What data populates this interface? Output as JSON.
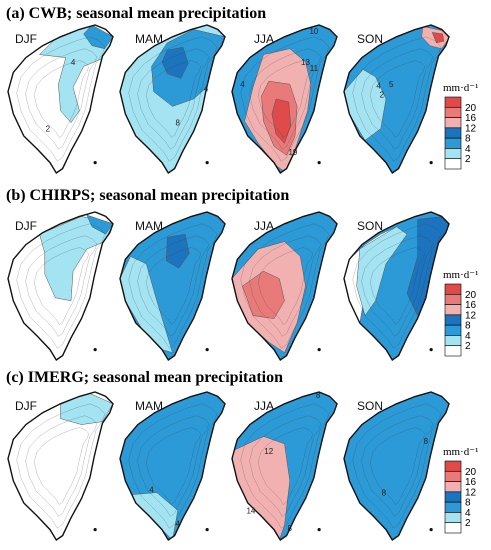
{
  "chart_data": {
    "type": "contour-map-grid",
    "rows": [
      {
        "title": "(a) CWB; seasonal mean precipitation",
        "panels": [
          {
            "season": "DJF",
            "base_color": "#ffffff",
            "zones": [
              {
                "color": "#a3e3f2",
                "level": 4
              },
              {
                "color": "#2c9ad6",
                "level": 8
              }
            ],
            "labels": [
              {
                "text": "4",
                "u": 0.62,
                "v": 0.27
              },
              {
                "text": "2",
                "u": 0.38,
                "v": 0.72
              }
            ]
          },
          {
            "season": "MAM",
            "base_color": "#a3e3f2",
            "zones": [
              {
                "color": "#2c9ad6",
                "level": 8
              },
              {
                "color": "#1c74bf",
                "level": 10
              }
            ],
            "labels": [
              {
                "text": "4",
                "u": 0.82,
                "v": 0.45
              },
              {
                "text": "8",
                "u": 0.55,
                "v": 0.68
              }
            ]
          },
          {
            "season": "JJA",
            "base_color": "#2c9ad6",
            "zones": [
              {
                "color": "#f2b1b1",
                "level": 12
              },
              {
                "color": "#e87a7a",
                "level": 16
              },
              {
                "color": "#df4a4a",
                "level": 20
              }
            ],
            "labels": [
              {
                "text": "10",
                "u": 0.78,
                "v": 0.06
              },
              {
                "text": "13",
                "u": 0.7,
                "v": 0.27
              },
              {
                "text": "11",
                "u": 0.78,
                "v": 0.31
              },
              {
                "text": "4",
                "u": 0.1,
                "v": 0.42
              },
              {
                "text": "19",
                "u": 0.58,
                "v": 0.88
              }
            ]
          },
          {
            "season": "SON",
            "base_color": "#2c9ad6",
            "zones": [
              {
                "color": "#a3e3f2",
                "level": 4
              },
              {
                "color": "#f2b1b1",
                "level": 12
              },
              {
                "color": "#df4a4a",
                "level": 20
              }
            ],
            "labels": [
              {
                "text": "4",
                "u": 0.33,
                "v": 0.43
              },
              {
                "text": "5",
                "u": 0.45,
                "v": 0.42
              },
              {
                "text": "2",
                "u": 0.36,
                "v": 0.49
              }
            ]
          }
        ]
      },
      {
        "title": "(b) CHIRPS; seasonal mean precipitation",
        "panels": [
          {
            "season": "DJF",
            "base_color": "#ffffff",
            "zones": [
              {
                "color": "#a3e3f2",
                "level": 4
              },
              {
                "color": "#2c9ad6",
                "level": 8
              }
            ],
            "labels": []
          },
          {
            "season": "MAM",
            "base_color": "#2c9ad6",
            "zones": [
              {
                "color": "#a3e3f2",
                "level": 4
              },
              {
                "color": "#1c74bf",
                "level": 10
              }
            ],
            "labels": []
          },
          {
            "season": "JJA",
            "base_color": "#2c9ad6",
            "zones": [
              {
                "color": "#f2b1b1",
                "level": 12
              },
              {
                "color": "#e87a7a",
                "level": 16
              }
            ],
            "labels": []
          },
          {
            "season": "SON",
            "base_color": "#2c9ad6",
            "zones": [
              {
                "color": "#ffffff",
                "level": 2
              },
              {
                "color": "#a3e3f2",
                "level": 4
              },
              {
                "color": "#1c74bf",
                "level": 10
              }
            ],
            "labels": []
          }
        ]
      },
      {
        "title": "(c) IMERG; seasonal mean precipitation",
        "panels": [
          {
            "season": "DJF",
            "base_color": "#ffffff",
            "zones": [
              {
                "color": "#a3e3f2",
                "level": 4
              }
            ],
            "labels": []
          },
          {
            "season": "MAM",
            "base_color": "#2c9ad6",
            "zones": [
              {
                "color": "#a3e3f2",
                "level": 4
              }
            ],
            "labels": [
              {
                "text": "4",
                "u": 0.3,
                "v": 0.68
              },
              {
                "text": "4",
                "u": 0.55,
                "v": 0.91
              }
            ]
          },
          {
            "season": "JJA",
            "base_color": "#2c9ad6",
            "zones": [
              {
                "color": "#f2b1b1",
                "level": 12
              }
            ],
            "labels": [
              {
                "text": "8",
                "u": 0.82,
                "v": 0.04
              },
              {
                "text": "12",
                "u": 0.35,
                "v": 0.42
              },
              {
                "text": "14",
                "u": 0.18,
                "v": 0.82
              },
              {
                "text": "8",
                "u": 0.55,
                "v": 0.94
              }
            ]
          },
          {
            "season": "SON",
            "base_color": "#2c9ad6",
            "zones": [],
            "labels": [
              {
                "text": "8",
                "u": 0.78,
                "v": 0.35
              },
              {
                "text": "8",
                "u": 0.38,
                "v": 0.7
              }
            ]
          }
        ]
      }
    ],
    "colorbar": {
      "unit": "mm·d⁻¹",
      "levels": [
        "20",
        "16",
        "12",
        "8",
        "4",
        "2"
      ],
      "colors": [
        "#df4a4a",
        "#e87a7a",
        "#f2b1b1",
        "#1c74bf",
        "#2c9ad6",
        "#a3e3f2",
        "#ffffff"
      ]
    }
  }
}
